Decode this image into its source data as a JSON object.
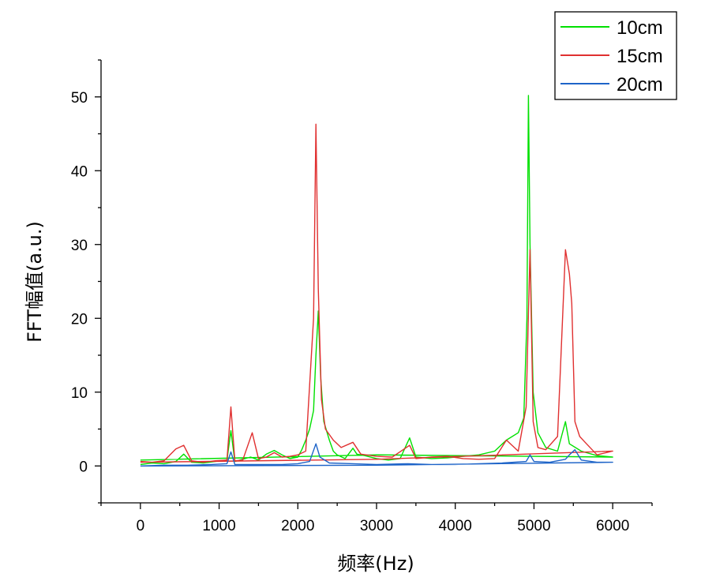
{
  "chart_data": {
    "type": "line",
    "xlabel": "频率(Hz)",
    "ylabel": "FFT幅值(a.u.)",
    "xlim": [
      -500,
      6500
    ],
    "ylim": [
      -5,
      55
    ],
    "x_ticks": [
      0,
      1000,
      2000,
      3000,
      4000,
      5000,
      6000
    ],
    "y_ticks": [
      0,
      10,
      20,
      30,
      40,
      50
    ],
    "grid": false,
    "legend_position": "top-right",
    "series": [
      {
        "name": "10cm",
        "color": "#00e000",
        "points": [
          [
            0,
            0.2
          ],
          [
            150,
            0.4
          ],
          [
            300,
            0.3
          ],
          [
            450,
            0.6
          ],
          [
            550,
            1.6
          ],
          [
            650,
            0.5
          ],
          [
            800,
            0.4
          ],
          [
            950,
            0.6
          ],
          [
            1100,
            0.8
          ],
          [
            1150,
            4.8
          ],
          [
            1200,
            0.6
          ],
          [
            1300,
            0.9
          ],
          [
            1400,
            1.2
          ],
          [
            1500,
            0.8
          ],
          [
            1600,
            1.6
          ],
          [
            1700,
            2.1
          ],
          [
            1800,
            1.5
          ],
          [
            1900,
            1.0
          ],
          [
            2000,
            1.2
          ],
          [
            2050,
            2.2
          ],
          [
            2100,
            3.5
          ],
          [
            2150,
            5.0
          ],
          [
            2200,
            7.5
          ],
          [
            2230,
            15.0
          ],
          [
            2260,
            21.0
          ],
          [
            2290,
            12.0
          ],
          [
            2330,
            6.0
          ],
          [
            2400,
            3.5
          ],
          [
            2450,
            2.0
          ],
          [
            2500,
            1.5
          ],
          [
            2600,
            1.0
          ],
          [
            2700,
            2.4
          ],
          [
            2750,
            1.6
          ],
          [
            2850,
            1.4
          ],
          [
            3000,
            1.0
          ],
          [
            3150,
            0.8
          ],
          [
            3300,
            1.0
          ],
          [
            3420,
            3.8
          ],
          [
            3500,
            1.2
          ],
          [
            3700,
            1.0
          ],
          [
            3900,
            1.1
          ],
          [
            4100,
            1.3
          ],
          [
            4300,
            1.5
          ],
          [
            4500,
            2.0
          ],
          [
            4650,
            3.5
          ],
          [
            4800,
            4.5
          ],
          [
            4870,
            6.5
          ],
          [
            4910,
            20.0
          ],
          [
            4930,
            50.2
          ],
          [
            4950,
            30.0
          ],
          [
            4990,
            10.0
          ],
          [
            5050,
            4.5
          ],
          [
            5150,
            2.5
          ],
          [
            5300,
            2.0
          ],
          [
            5400,
            6.0
          ],
          [
            5450,
            3.0
          ],
          [
            5600,
            2.0
          ],
          [
            5800,
            1.4
          ],
          [
            6000,
            1.2
          ],
          [
            3000,
            1.5
          ],
          [
            0,
            0.8
          ]
        ]
      },
      {
        "name": "15cm",
        "color": "#e03030",
        "points": [
          [
            0,
            0.6
          ],
          [
            150,
            0.5
          ],
          [
            300,
            0.7
          ],
          [
            450,
            2.3
          ],
          [
            550,
            2.8
          ],
          [
            650,
            0.7
          ],
          [
            800,
            0.5
          ],
          [
            950,
            0.7
          ],
          [
            1100,
            0.8
          ],
          [
            1150,
            8.0
          ],
          [
            1200,
            0.7
          ],
          [
            1300,
            0.8
          ],
          [
            1420,
            4.5
          ],
          [
            1500,
            1.0
          ],
          [
            1600,
            1.2
          ],
          [
            1700,
            1.8
          ],
          [
            1800,
            1.2
          ],
          [
            1900,
            1.3
          ],
          [
            2000,
            1.5
          ],
          [
            2100,
            2.0
          ],
          [
            2200,
            20.0
          ],
          [
            2230,
            46.3
          ],
          [
            2260,
            24.0
          ],
          [
            2300,
            9.0
          ],
          [
            2350,
            5.0
          ],
          [
            2450,
            3.5
          ],
          [
            2550,
            2.5
          ],
          [
            2700,
            3.2
          ],
          [
            2800,
            1.6
          ],
          [
            3000,
            1.3
          ],
          [
            3200,
            1.2
          ],
          [
            3420,
            2.8
          ],
          [
            3500,
            1.0
          ],
          [
            3700,
            1.2
          ],
          [
            3900,
            1.3
          ],
          [
            4100,
            1.0
          ],
          [
            4300,
            0.9
          ],
          [
            4500,
            1.0
          ],
          [
            4650,
            3.5
          ],
          [
            4800,
            2.0
          ],
          [
            4900,
            8.0
          ],
          [
            4950,
            29.3
          ],
          [
            4990,
            6.0
          ],
          [
            5050,
            2.5
          ],
          [
            5150,
            2.2
          ],
          [
            5300,
            4.0
          ],
          [
            5400,
            29.3
          ],
          [
            5450,
            26.0
          ],
          [
            5480,
            22.0
          ],
          [
            5520,
            6.0
          ],
          [
            5580,
            4.0
          ],
          [
            5650,
            3.2
          ],
          [
            5800,
            1.5
          ],
          [
            6000,
            2.0
          ],
          [
            3000,
            0.9
          ],
          [
            0,
            0.5
          ]
        ]
      },
      {
        "name": "20cm",
        "color": "#1e64c8",
        "points": [
          [
            0,
            0.0
          ],
          [
            300,
            0.1
          ],
          [
            600,
            0.1
          ],
          [
            900,
            0.2
          ],
          [
            1100,
            0.3
          ],
          [
            1150,
            1.9
          ],
          [
            1200,
            0.2
          ],
          [
            1500,
            0.2
          ],
          [
            1800,
            0.2
          ],
          [
            2000,
            0.3
          ],
          [
            2150,
            0.6
          ],
          [
            2230,
            3.0
          ],
          [
            2280,
            1.2
          ],
          [
            2400,
            0.4
          ],
          [
            2700,
            0.3
          ],
          [
            3000,
            0.2
          ],
          [
            3400,
            0.3
          ],
          [
            3700,
            0.2
          ],
          [
            4000,
            0.2
          ],
          [
            4300,
            0.3
          ],
          [
            4600,
            0.4
          ],
          [
            4900,
            0.6
          ],
          [
            4950,
            1.5
          ],
          [
            5000,
            0.6
          ],
          [
            5200,
            0.5
          ],
          [
            5400,
            0.9
          ],
          [
            5450,
            1.5
          ],
          [
            5520,
            2.2
          ],
          [
            5600,
            0.8
          ],
          [
            5800,
            0.5
          ],
          [
            6000,
            0.5
          ],
          [
            3000,
            0.1
          ],
          [
            0,
            0.0
          ]
        ]
      }
    ]
  }
}
